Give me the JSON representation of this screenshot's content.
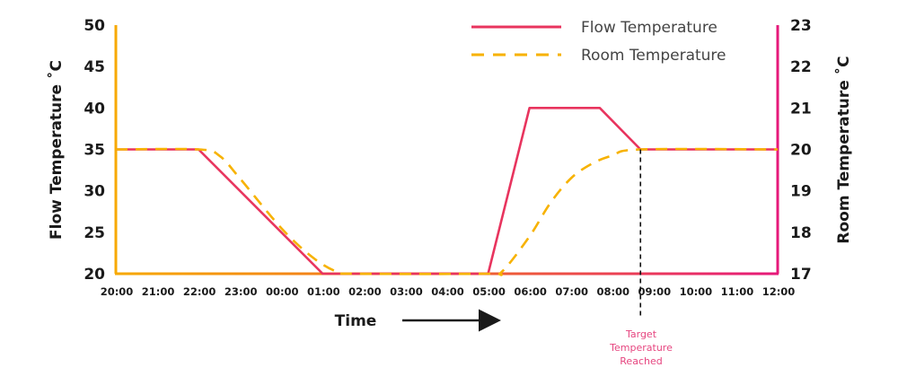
{
  "chart_data": {
    "type": "line",
    "xlabel": "Time",
    "ylabel_left": "Flow Temperature ˚C",
    "ylabel_right": "Room Temperature ˚C",
    "x_ticks": [
      "20:00",
      "21:00",
      "22:00",
      "23:00",
      "00:00",
      "01:00",
      "02:00",
      "03:00",
      "04:00",
      "05:00",
      "06:00",
      "07:00",
      "08:00",
      "09:00",
      "10:00",
      "11:00",
      "12:00"
    ],
    "ylim_left": [
      20,
      50
    ],
    "yticks_left": [
      "20",
      "25",
      "30",
      "35",
      "40",
      "45",
      "50"
    ],
    "ylim_right": [
      17,
      23
    ],
    "yticks_right": [
      "17",
      "18",
      "19",
      "20",
      "21",
      "22",
      "23"
    ],
    "grid": false,
    "legend_position": "top-right",
    "series": [
      {
        "name": "Flow Temperature",
        "axis": "left",
        "style": "solid",
        "color": "#e8345e",
        "x": [
          "20:00",
          "22:00",
          "01:00",
          "05:00",
          "06:00",
          "07:42",
          "08:41",
          "12:00"
        ],
        "y": [
          35,
          35,
          20,
          20,
          40,
          40,
          35,
          35
        ]
      },
      {
        "name": "Room Temperature",
        "axis": "right",
        "style": "dashed",
        "color": "#f7b200",
        "x": [
          "20:00",
          "22:00",
          "22:30",
          "23:00",
          "00:00",
          "00:45",
          "01:20",
          "01:45",
          "05:00",
          "05:20",
          "06:00",
          "06:30",
          "07:00",
          "07:30",
          "08:00",
          "08:41",
          "12:00"
        ],
        "y": [
          20,
          20,
          19.85,
          19.3,
          18.1,
          17.4,
          17.05,
          17,
          17,
          17.05,
          17.9,
          18.7,
          19.3,
          19.65,
          19.85,
          20,
          20
        ]
      }
    ],
    "annotation": {
      "x": "08:41",
      "text_lines": [
        "Target",
        "Temperature",
        "Reached"
      ],
      "color": "#e6457f"
    },
    "axis_colors": {
      "left": "#f7a900",
      "right": "#e6197a"
    }
  }
}
